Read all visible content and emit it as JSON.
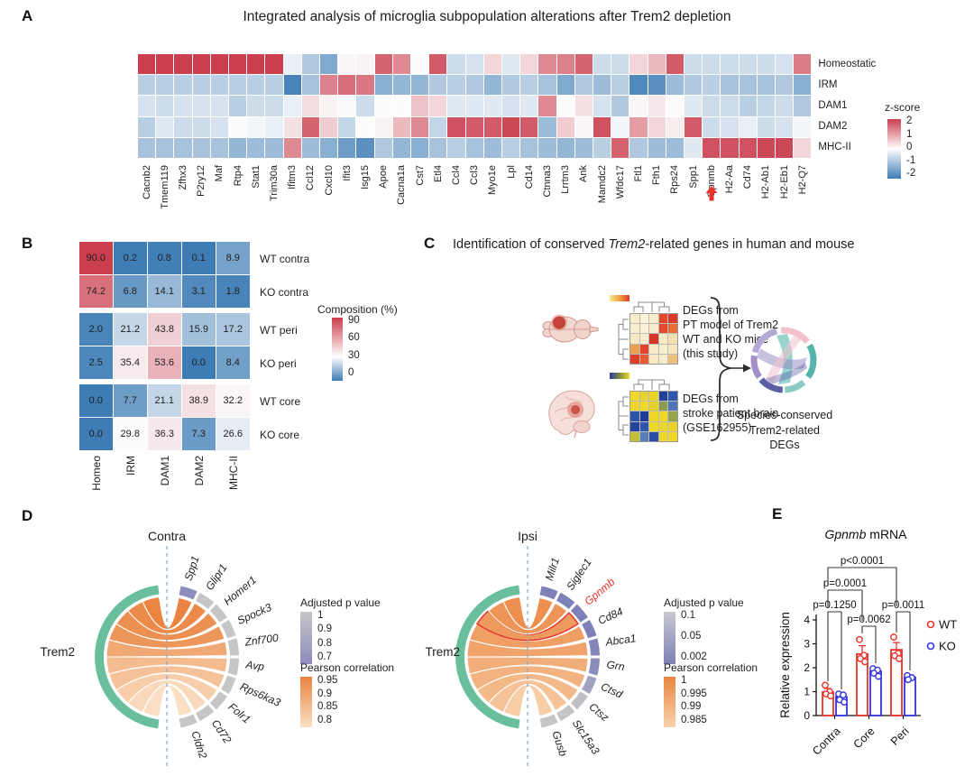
{
  "labels": {
    "a": "A",
    "b": "B",
    "c": "C",
    "d": "D",
    "e": "E"
  },
  "colors": {
    "heat_red": "#cb3e4d",
    "heat_blue": "#3d7cb5",
    "accent_red": "#e8312a",
    "trem2_green": "#69bf9d",
    "ribbon_orange_dark": "#ea8440",
    "ribbon_orange_light_contra": "#fadfc4",
    "ribbon_orange_light_ipsi": "#f8d3ad",
    "pvalue_gray": "#c6c6c6",
    "pvalue_purple_contra": "#8e8bbd",
    "pvalue_purple_ipsi": "#7e80b8",
    "wt_red": "#e8342a",
    "ko_blue": "#3333dd",
    "dashed_line": "#86a8cc"
  },
  "panel_a": {
    "title": "Integrated analysis of microglia subpopulation alterations after Trem2 depletion",
    "legend_title": "z-score",
    "legend_ticks": [
      "2",
      "1",
      "0",
      "-1",
      "-2"
    ]
  },
  "panel_b": {
    "legend_title": "Composition (%)",
    "legend_ticks": [
      "90",
      "60",
      "30",
      "0"
    ]
  },
  "panel_c": {
    "title_pre": "Identification of conserved ",
    "title_italic": "Trem2",
    "title_post": "-related genes in human and mouse",
    "box1_lines": [
      "DEGs from",
      "PT model of Trem2",
      "WT and KO mice",
      "(this study)"
    ],
    "box2_lines": [
      "DEGs from",
      "stroke patient brain",
      "(GSE162955)"
    ],
    "caption_line1": "Species-conserved",
    "caption_line2": "Trem2-related DEGs",
    "hm1_cells": [
      [
        "#f8edca",
        "#fdf4d7",
        "#f8eecd",
        "#e4482c",
        "#da3a28"
      ],
      [
        "#f9efd0",
        "#faf1d4",
        "#f8eecb",
        "#e14a2c",
        "#ea6a35"
      ],
      [
        "#f6e8c0",
        "#f9eecb",
        "#d63529",
        "#f8ecc8",
        "#f3dfb0"
      ],
      [
        "#ef9d4e",
        "#e2442b",
        "#f8ecc6",
        "#f9efce",
        "#f6e8c0"
      ],
      [
        "#dd3f2a",
        "#e85b31",
        "#f7eac4",
        "#f8edca",
        "#efc07c"
      ]
    ],
    "hm2_cells": [
      [
        "#f2d928",
        "#e8d22c",
        "#ecd52a",
        "#25429b",
        "#2e57ae"
      ],
      [
        "#edd62a",
        "#f0d829",
        "#e6d02e",
        "#8a9c4e",
        "#4f74b5"
      ],
      [
        "#2e55ac",
        "#1f3d96",
        "#eed72a",
        "#f0d829",
        "#97a54a"
      ],
      [
        "#24439c",
        "#2e55ac",
        "#f0d829",
        "#eed72a",
        "#e9d32b"
      ],
      [
        "#c4bd37",
        "#5a7fb8",
        "#2a4da5",
        "#eed72a",
        "#f0d829"
      ]
    ]
  },
  "panel_d": {
    "contra_legend_p_title": "Adjusted p value",
    "contra_legend_p_ticks": [
      "1",
      "0.9",
      "0.8",
      "0.7"
    ],
    "contra_legend_r_title": "Pearson correlation",
    "contra_legend_r_ticks": [
      "0.95",
      "0.9",
      "0.85",
      "0.8"
    ],
    "ipsi_legend_p_title": "Adjusted p value",
    "ipsi_legend_p_ticks": [
      "0.1",
      "0.05",
      "0.002"
    ],
    "ipsi_legend_r_title": "Pearson correlation",
    "ipsi_legend_r_ticks": [
      "1",
      "0.995",
      "0.99",
      "0.985"
    ]
  },
  "chart_data": [
    {
      "id": "subpopulation_heatmap",
      "type": "heatmap",
      "title": "Integrated analysis of microglia subpopulation alterations after Trem2 depletion",
      "rows": [
        "Homeostatic",
        "IRM",
        "DAM1",
        "DAM2",
        "MHC-II"
      ],
      "columns": [
        "Cacnb2",
        "Tmem119",
        "Zfhx3",
        "P2ry12",
        "Maf",
        "Rtp4",
        "Stat1",
        "Trim30a",
        "Ifitm3",
        "Ccl12",
        "Cxcl10",
        "Ifit3",
        "Isg15",
        "Apoe",
        "Cacna1a",
        "Cst7",
        "Etl4",
        "Ccl4",
        "Ccl3",
        "Myo1e",
        "Lpl",
        "Cd14",
        "Ctnna3",
        "Lrrtm3",
        "Ank",
        "Mamdc2",
        "Wfdc17",
        "Ftl1",
        "Fth1",
        "Rps24",
        "Spp1",
        "Gpnmb",
        "H2-Aa",
        "Cd74",
        "H2-Ab1",
        "H2-Eb1",
        "H2-Q7"
      ],
      "values": [
        [
          2,
          2,
          2,
          2,
          2,
          2,
          2,
          2,
          -0.2,
          -0.8,
          -1.3,
          0.05,
          0.1,
          1.6,
          1.2,
          0,
          1.7,
          -0.5,
          -0.4,
          0.4,
          -0.3,
          0.4,
          1.2,
          1.3,
          1.6,
          -0.5,
          -0.5,
          0.4,
          0.7,
          1.7,
          -0.5,
          -0.5,
          -0.5,
          -0.5,
          -0.5,
          -0.4,
          1.35
        ],
        [
          -0.7,
          -0.7,
          -0.7,
          -0.7,
          -0.7,
          -0.7,
          -0.7,
          -0.7,
          -1.9,
          -0.9,
          1.3,
          1.5,
          1.4,
          -1.2,
          -1.1,
          -1.1,
          -0.8,
          -0.7,
          -0.8,
          -1.1,
          -0.8,
          -0.7,
          -0.9,
          -1.3,
          -0.8,
          -1.0,
          -0.7,
          -1.8,
          -1.7,
          -1.0,
          -0.8,
          -0.7,
          -0.9,
          -0.9,
          -0.9,
          -0.8,
          -1.2
        ],
        [
          -0.4,
          -0.5,
          -0.4,
          -0.4,
          -0.4,
          -0.7,
          -0.5,
          -0.5,
          -0.2,
          0.35,
          0.1,
          -0.05,
          -0.5,
          0,
          0,
          0.6,
          0.4,
          -0.3,
          -0.3,
          -0.3,
          -0.4,
          -0.3,
          1.2,
          0,
          0.3,
          -0.4,
          -0.8,
          0.05,
          0.2,
          0,
          -0.3,
          -0.5,
          -0.5,
          -0.7,
          -0.6,
          -0.5,
          -0.8
        ],
        [
          -0.7,
          -0.3,
          -0.5,
          -0.5,
          -0.4,
          0,
          -0.1,
          -0.2,
          0.3,
          1.6,
          0.5,
          -0.6,
          0,
          0.1,
          0.7,
          1.2,
          -0.6,
          1.8,
          1.7,
          1.7,
          1.9,
          1.7,
          -1.0,
          0.5,
          0.05,
          1.8,
          -0.1,
          1.0,
          0.4,
          0.15,
          1.7,
          -0.5,
          -0.4,
          -0.2,
          -0.5,
          -0.4,
          -0.1
        ],
        [
          -0.9,
          -0.9,
          -0.9,
          -0.9,
          -0.9,
          -1.1,
          -1.0,
          -1.0,
          1.2,
          -1.0,
          -1.2,
          -1.5,
          -1.7,
          -0.8,
          -1.1,
          -1.2,
          -0.9,
          -0.7,
          -0.9,
          -1.0,
          -0.7,
          -0.9,
          -1.0,
          -1.1,
          -1.0,
          -0.7,
          1.6,
          -0.8,
          -1.0,
          -1.0,
          -0.3,
          1.8,
          1.8,
          1.8,
          1.9,
          1.9,
          0.4
        ]
      ],
      "zlim": [
        -2,
        2
      ],
      "legend_title": "z-score",
      "legend_ticks": [
        2,
        1,
        0,
        -1,
        -2
      ],
      "highlight_column": "Gpnmb"
    },
    {
      "id": "composition_heatmap",
      "type": "heatmap",
      "rows": [
        "WT contra",
        "KO contra",
        "WT peri",
        "KO peri",
        "WT core",
        "KO core"
      ],
      "columns": [
        "Homeo",
        "IRM",
        "DAM1",
        "DAM2",
        "MHC-II"
      ],
      "values": [
        [
          90.0,
          0.2,
          0.8,
          0.1,
          8.9
        ],
        [
          74.2,
          6.8,
          14.1,
          3.1,
          1.8
        ],
        [
          2.0,
          21.2,
          43.8,
          15.9,
          17.2
        ],
        [
          2.5,
          35.4,
          53.6,
          0.0,
          8.4
        ],
        [
          0.0,
          7.7,
          21.1,
          38.9,
          32.2
        ],
        [
          0.0,
          29.8,
          36.3,
          7.3,
          26.6
        ]
      ],
      "legend_title": "Composition (%)",
      "legend_ticks": [
        90,
        60,
        30,
        0
      ]
    },
    {
      "id": "chord_contra",
      "type": "chord",
      "title": "Contra",
      "source": "Trem2",
      "targets": [
        {
          "name": "Spp1",
          "adj_p": 0.7,
          "pearson": 0.95
        },
        {
          "name": "Glipr1",
          "adj_p": 1,
          "pearson": 0.94
        },
        {
          "name": "Homer1",
          "adj_p": 1,
          "pearson": 0.93
        },
        {
          "name": "Spock3",
          "adj_p": 1,
          "pearson": 0.92
        },
        {
          "name": "Znf700",
          "adj_p": 1,
          "pearson": 0.89
        },
        {
          "name": "Avp",
          "adj_p": 1,
          "pearson": 0.86
        },
        {
          "name": "Rps6ka3",
          "adj_p": 1,
          "pearson": 0.85
        },
        {
          "name": "Folr1",
          "adj_p": 1,
          "pearson": 0.83
        },
        {
          "name": "Cd72",
          "adj_p": 1,
          "pearson": 0.81
        },
        {
          "name": "Cldn2",
          "adj_p": 1,
          "pearson": 0.8
        }
      ],
      "p_scale": [
        0.7,
        1
      ],
      "pearson_scale": [
        0.8,
        0.95
      ]
    },
    {
      "id": "chord_ipsi",
      "type": "chord",
      "title": "Ipsi",
      "source": "Trem2",
      "targets": [
        {
          "name": "Milr1",
          "adj_p": 0.002,
          "pearson": 0.998
        },
        {
          "name": "Siglec1",
          "adj_p": 0.002,
          "pearson": 0.997
        },
        {
          "name": "Gpnmb",
          "adj_p": 0.002,
          "pearson": 0.996,
          "highlight": true
        },
        {
          "name": "Cd84",
          "adj_p": 0.002,
          "pearson": 0.995
        },
        {
          "name": "Abca1",
          "adj_p": 0.01,
          "pearson": 0.994
        },
        {
          "name": "Grn",
          "adj_p": 0.02,
          "pearson": 0.992
        },
        {
          "name": "Ctsd",
          "adj_p": 0.05,
          "pearson": 0.991
        },
        {
          "name": "Ctsz",
          "adj_p": 0.09,
          "pearson": 0.99
        },
        {
          "name": "Slc15a3",
          "adj_p": 0.1,
          "pearson": 0.988
        },
        {
          "name": "Gusb",
          "adj_p": 0.1,
          "pearson": 0.986
        }
      ],
      "p_scale": [
        0.002,
        0.1
      ],
      "pearson_scale": [
        0.985,
        1
      ]
    },
    {
      "id": "gpnmb_mrna",
      "type": "bar",
      "title_italic": "Gpnmb",
      "title_post": " mRNA",
      "ylabel": "Relative expression",
      "ylim": [
        0,
        4
      ],
      "yticks": [
        0,
        1,
        2,
        3,
        4
      ],
      "categories": [
        "Contra",
        "Core",
        "Peri"
      ],
      "series": [
        {
          "name": "WT",
          "means": [
            0.98,
            2.57,
            2.75
          ],
          "err_top": [
            1.13,
            2.92,
            3.05
          ],
          "points": [
            [
              1.27,
              1.0,
              0.9,
              0.82
            ],
            [
              3.18,
              2.52,
              2.38,
              2.25
            ],
            [
              3.28,
              2.6,
              2.5,
              2.38
            ]
          ]
        },
        {
          "name": "KO",
          "means": [
            0.78,
            1.85,
            1.6
          ],
          "err_top": [
            0.88,
            1.95,
            1.7
          ],
          "points": [
            [
              0.9,
              0.86,
              0.66,
              0.56
            ],
            [
              1.96,
              1.9,
              1.77,
              1.64
            ],
            [
              1.67,
              1.58,
              1.5
            ]
          ]
        }
      ],
      "pvalues": [
        "p=0.1250",
        "p=0.0062",
        "p=0.0011",
        "p=0.0001",
        "p<0.0001"
      ]
    }
  ]
}
